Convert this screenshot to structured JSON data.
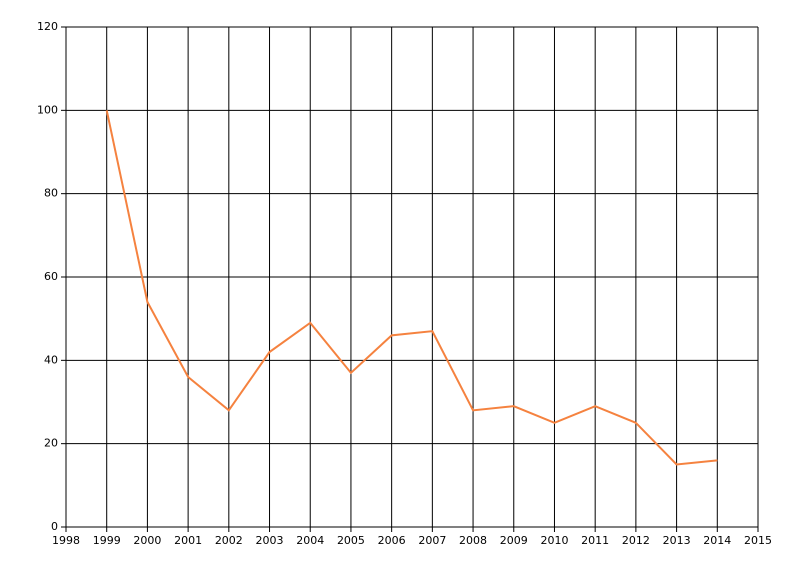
{
  "chart_data": {
    "type": "line",
    "x": [
      1999,
      2000,
      2001,
      2002,
      2003,
      2004,
      2005,
      2006,
      2007,
      2008,
      2009,
      2010,
      2011,
      2012,
      2013,
      2014
    ],
    "series": [
      {
        "color": "#f5823f",
        "values": [
          100,
          54,
          36,
          28,
          42,
          49,
          37,
          46,
          47,
          28,
          29,
          25,
          29,
          25,
          15,
          16
        ]
      }
    ],
    "xlim": [
      1998,
      2015
    ],
    "xticks": [
      1998,
      1999,
      2000,
      2001,
      2002,
      2003,
      2004,
      2005,
      2006,
      2007,
      2008,
      2009,
      2010,
      2011,
      2012,
      2013,
      2014,
      2015
    ],
    "ylim": [
      0,
      120
    ],
    "yticks": [
      0,
      20,
      40,
      60,
      80,
      100,
      120
    ],
    "grid": true
  }
}
